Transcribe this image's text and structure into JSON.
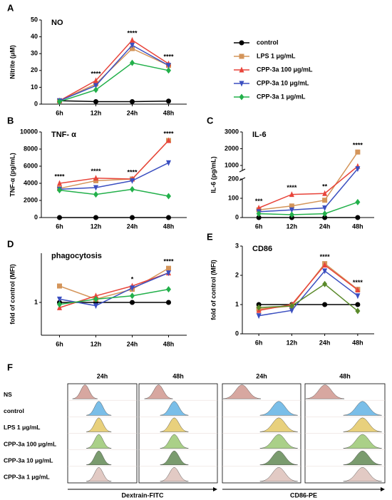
{
  "chart_data": [
    {
      "type": "line",
      "panel": "A",
      "title": "NO",
      "ylabel": "Nitrite (μM)",
      "categories": [
        "6h",
        "12h",
        "24h",
        "48h"
      ],
      "ylim": [
        0,
        50
      ],
      "yticks": [
        0,
        10,
        20,
        30,
        40,
        50
      ],
      "annotations": [
        null,
        "****",
        "****",
        "****"
      ],
      "series": [
        {
          "name": "control",
          "color": "#000000",
          "marker": "circle",
          "values": [
            2,
            1.5,
            1.5,
            1.8
          ]
        },
        {
          "name": "LPS 1 μg/mL",
          "color": "#d4955a",
          "marker": "square",
          "values": [
            2,
            12,
            33,
            23
          ]
        },
        {
          "name": "CPP-3a 100 μg/mL",
          "color": "#e8443a",
          "marker": "triangle-up",
          "values": [
            2,
            14,
            38,
            24
          ]
        },
        {
          "name": "CPP-3a 10 μg/mL",
          "color": "#3b4fc0",
          "marker": "triangle-down",
          "values": [
            2,
            11,
            35,
            23
          ]
        },
        {
          "name": "CPP-3a 1 μg/mL",
          "color": "#22b04a",
          "marker": "diamond",
          "values": [
            1.5,
            8.5,
            24.5,
            20
          ]
        }
      ]
    },
    {
      "type": "line",
      "panel": "B",
      "title": "TNF- α",
      "ylabel": "TNF-α (pg/mL)",
      "categories": [
        "6h",
        "12h",
        "24h",
        "48h"
      ],
      "ylim": [
        0,
        10000
      ],
      "yticks": [
        0,
        2000,
        4000,
        6000,
        8000,
        10000
      ],
      "annotations": [
        "****",
        "****",
        "****",
        "****"
      ],
      "series": [
        {
          "color": "#000000",
          "marker": "circle",
          "values": [
            0,
            0,
            0,
            0
          ]
        },
        {
          "color": "#d4955a",
          "marker": "square",
          "values": [
            3400,
            4300,
            4500,
            9000
          ]
        },
        {
          "color": "#e8443a",
          "marker": "triangle-up",
          "values": [
            4000,
            4600,
            4500,
            9000
          ]
        },
        {
          "color": "#3b4fc0",
          "marker": "triangle-down",
          "values": [
            3300,
            3500,
            4300,
            6400
          ]
        },
        {
          "color": "#22b04a",
          "marker": "diamond",
          "values": [
            3200,
            2700,
            3300,
            2500
          ]
        }
      ]
    },
    {
      "type": "line",
      "panel": "C",
      "title": "IL-6",
      "ylabel": "IL-6 (pg/mL)",
      "categories": [
        "6h",
        "12h",
        "24h",
        "48h"
      ],
      "ylim": [
        0,
        3000
      ],
      "ybreak": [
        200,
        700
      ],
      "yticks": [
        0,
        100,
        200,
        1000,
        2000,
        3000
      ],
      "annotations": [
        "***",
        "****",
        "**",
        "****"
      ],
      "series": [
        {
          "color": "#000000",
          "marker": "circle",
          "values": [
            0,
            0,
            0,
            0
          ]
        },
        {
          "color": "#d4955a",
          "marker": "square",
          "values": [
            40,
            60,
            90,
            1800
          ]
        },
        {
          "color": "#e8443a",
          "marker": "triangle-up",
          "values": [
            50,
            120,
            125,
            950
          ]
        },
        {
          "color": "#3b4fc0",
          "marker": "triangle-down",
          "values": [
            30,
            40,
            50,
            800
          ]
        },
        {
          "color": "#22b04a",
          "marker": "diamond",
          "values": [
            20,
            15,
            20,
            80
          ]
        }
      ]
    },
    {
      "type": "line",
      "panel": "D",
      "title": "phagocytosis",
      "ylabel": "fold of control (MFI)",
      "categories": [
        "6h",
        "12h",
        "24h",
        "48h"
      ],
      "ylim": [
        0.5,
        1.75
      ],
      "yticks": [
        1
      ],
      "annotations": [
        null,
        null,
        "*",
        "****"
      ],
      "series": [
        {
          "color": "#000000",
          "marker": "circle",
          "values": [
            1,
            1,
            1,
            1
          ]
        },
        {
          "color": "#d4955a",
          "marker": "square",
          "values": [
            1.25,
            1.05,
            1.2,
            1.52
          ]
        },
        {
          "color": "#e8443a",
          "marker": "triangle-up",
          "values": [
            0.92,
            1.1,
            1.25,
            1.45
          ]
        },
        {
          "color": "#3b4fc0",
          "marker": "triangle-down",
          "values": [
            1.05,
            0.95,
            1.22,
            1.45
          ]
        },
        {
          "color": "#22b04a",
          "marker": "diamond",
          "values": [
            0.97,
            1.05,
            1.1,
            1.2
          ]
        }
      ]
    },
    {
      "type": "line",
      "panel": "E",
      "title": "CD86",
      "ylabel": "fold of control (MFI)",
      "categories": [
        "6h",
        "12h",
        "24h",
        "48h"
      ],
      "ylim": [
        0,
        3
      ],
      "yticks": [
        0,
        1,
        2,
        3
      ],
      "annotations": [
        null,
        null,
        "****",
        "****"
      ],
      "series": [
        {
          "color": "#000000",
          "marker": "circle",
          "values": [
            1,
            1,
            1,
            1
          ]
        },
        {
          "color": "#d4955a",
          "marker": "square",
          "values": [
            0.85,
            0.95,
            2.4,
            1.52
          ]
        },
        {
          "color": "#e8443a",
          "marker": "triangle-up",
          "values": [
            0.8,
            1,
            2.35,
            1.5
          ]
        },
        {
          "color": "#3b4fc0",
          "marker": "triangle-down",
          "values": [
            0.62,
            0.8,
            2.15,
            1.3
          ]
        },
        {
          "color": "#5a8a2a",
          "marker": "diamond",
          "values": [
            0.9,
            0.95,
            1.7,
            0.78
          ]
        }
      ]
    }
  ],
  "flow": {
    "panel": "F",
    "columns": [
      "24h",
      "48h",
      "24h",
      "48h"
    ],
    "rows": [
      "NS",
      "control",
      "LPS 1 μg/mL",
      "CPP-3a 100 μg/mL",
      "CPP-3a 10 μg/mL",
      "CPP-3a 1 μg/mL"
    ],
    "x_labels": [
      "Dextrain-FITC",
      "CD86-PE"
    ]
  }
}
